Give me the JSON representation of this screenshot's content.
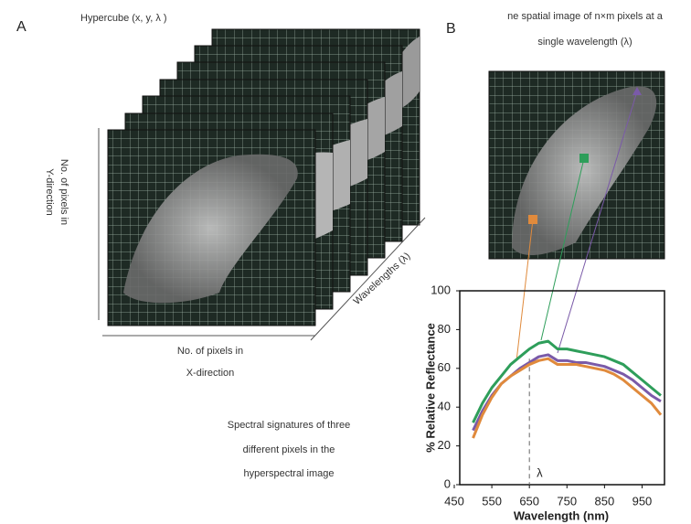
{
  "panel_a": {
    "letter": "A",
    "title": "Hypercube (x, y, λ )",
    "y_direction": [
      "No. of pixels in",
      "Y-direction"
    ],
    "x_direction": [
      "No. of pixels in",
      "X-direction"
    ],
    "wavelength_axis": "Wavelengths (λ)"
  },
  "panel_b": {
    "letter": "B",
    "caption": [
      "ne spatial image of n×m pixels at a",
      "single wavelength (λ)"
    ],
    "signature_caption": [
      "Spectral signatures of three",
      "different pixels in the",
      "hyperspectral image"
    ]
  },
  "chart_data": {
    "type": "line",
    "x_label": "Wavelength (nm)",
    "y_label": "% Relative Reflectance",
    "annotation": "λ",
    "annotation_x": 650,
    "x": [
      500,
      525,
      550,
      575,
      600,
      625,
      650,
      675,
      700,
      725,
      750,
      775,
      800,
      825,
      850,
      875,
      900,
      925,
      950,
      975,
      1000
    ],
    "series": [
      {
        "color": "#2e9e5a",
        "values": [
          32,
          42,
          50,
          56,
          62,
          66,
          70,
          73,
          74,
          70,
          70,
          69,
          68,
          67,
          66,
          64,
          62,
          58,
          54,
          50,
          46
        ]
      },
      {
        "color": "#7a5aa8",
        "values": [
          28,
          38,
          46,
          52,
          56,
          60,
          63,
          66,
          67,
          64,
          64,
          63,
          63,
          62,
          61,
          59,
          57,
          54,
          50,
          46,
          43
        ]
      },
      {
        "color": "#e08a3c",
        "values": [
          24,
          36,
          45,
          52,
          56,
          59,
          62,
          64,
          65,
          62,
          62,
          62,
          61,
          60,
          59,
          57,
          54,
          50,
          46,
          42,
          36
        ]
      }
    ],
    "xlim": [
      450,
      1000
    ],
    "xticks": [
      450,
      550,
      650,
      750,
      850,
      950
    ],
    "ylim": [
      0,
      100
    ],
    "yticks": [
      0,
      20,
      40,
      60,
      80,
      100
    ]
  }
}
